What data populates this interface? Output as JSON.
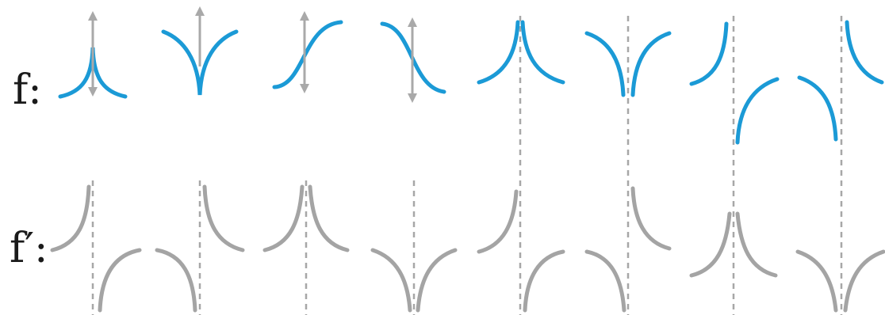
{
  "labels": {
    "f": "f:",
    "f_prime": "f′:"
  },
  "colors": {
    "f_curve": "#1b9ad6",
    "f_prime_curve": "#a4a4a4",
    "arrow": "#a9a9a9",
    "dashed_line": "#a7a7a7",
    "label_text": "#1a1a1a"
  }
}
